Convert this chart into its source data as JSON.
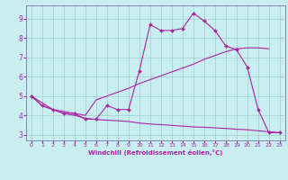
{
  "xlabel": "Windchill (Refroidissement éolien,°C)",
  "background_color": "#c8eef0",
  "grid_color": "#9dcfca",
  "line_color": "#aa22aa",
  "spine_color": "#7777aa",
  "xlim": [
    -0.5,
    23.5
  ],
  "ylim": [
    2.7,
    9.7
  ],
  "yticks": [
    3,
    4,
    5,
    6,
    7,
    8,
    9
  ],
  "xticks": [
    0,
    1,
    2,
    3,
    4,
    5,
    6,
    7,
    8,
    9,
    10,
    11,
    12,
    13,
    14,
    15,
    16,
    17,
    18,
    19,
    20,
    21,
    22,
    23
  ],
  "curve1_x": [
    0,
    1,
    2,
    3,
    4,
    5,
    6,
    7,
    8,
    9,
    10,
    11,
    12,
    13,
    14,
    15,
    16,
    17,
    18,
    19,
    20,
    21,
    22,
    23
  ],
  "curve1_y": [
    5.0,
    4.5,
    4.3,
    4.1,
    4.1,
    3.8,
    3.8,
    4.5,
    4.3,
    4.3,
    6.3,
    8.7,
    8.4,
    8.4,
    8.5,
    9.3,
    8.9,
    8.4,
    7.6,
    7.4,
    6.5,
    4.3,
    3.1,
    3.1
  ],
  "curve2_x": [
    0,
    2,
    5,
    6,
    7,
    8,
    9,
    10,
    11,
    12,
    13,
    14,
    15,
    16,
    17,
    18,
    19,
    20,
    21,
    22
  ],
  "curve2_y": [
    5.0,
    4.3,
    4.0,
    4.8,
    5.0,
    5.2,
    5.4,
    5.65,
    5.85,
    6.05,
    6.25,
    6.45,
    6.65,
    6.9,
    7.1,
    7.3,
    7.45,
    7.5,
    7.5,
    7.45
  ],
  "curve3_x": [
    0,
    1,
    2,
    3,
    4,
    5,
    6,
    7,
    8,
    9,
    10,
    11,
    12,
    13,
    14,
    15,
    16,
    17,
    18,
    19,
    20,
    21,
    22,
    23
  ],
  "curve3_y": [
    5.0,
    4.5,
    4.3,
    4.1,
    4.0,
    3.85,
    3.78,
    3.75,
    3.72,
    3.68,
    3.6,
    3.55,
    3.52,
    3.48,
    3.44,
    3.4,
    3.38,
    3.35,
    3.32,
    3.28,
    3.25,
    3.2,
    3.15,
    3.1
  ]
}
